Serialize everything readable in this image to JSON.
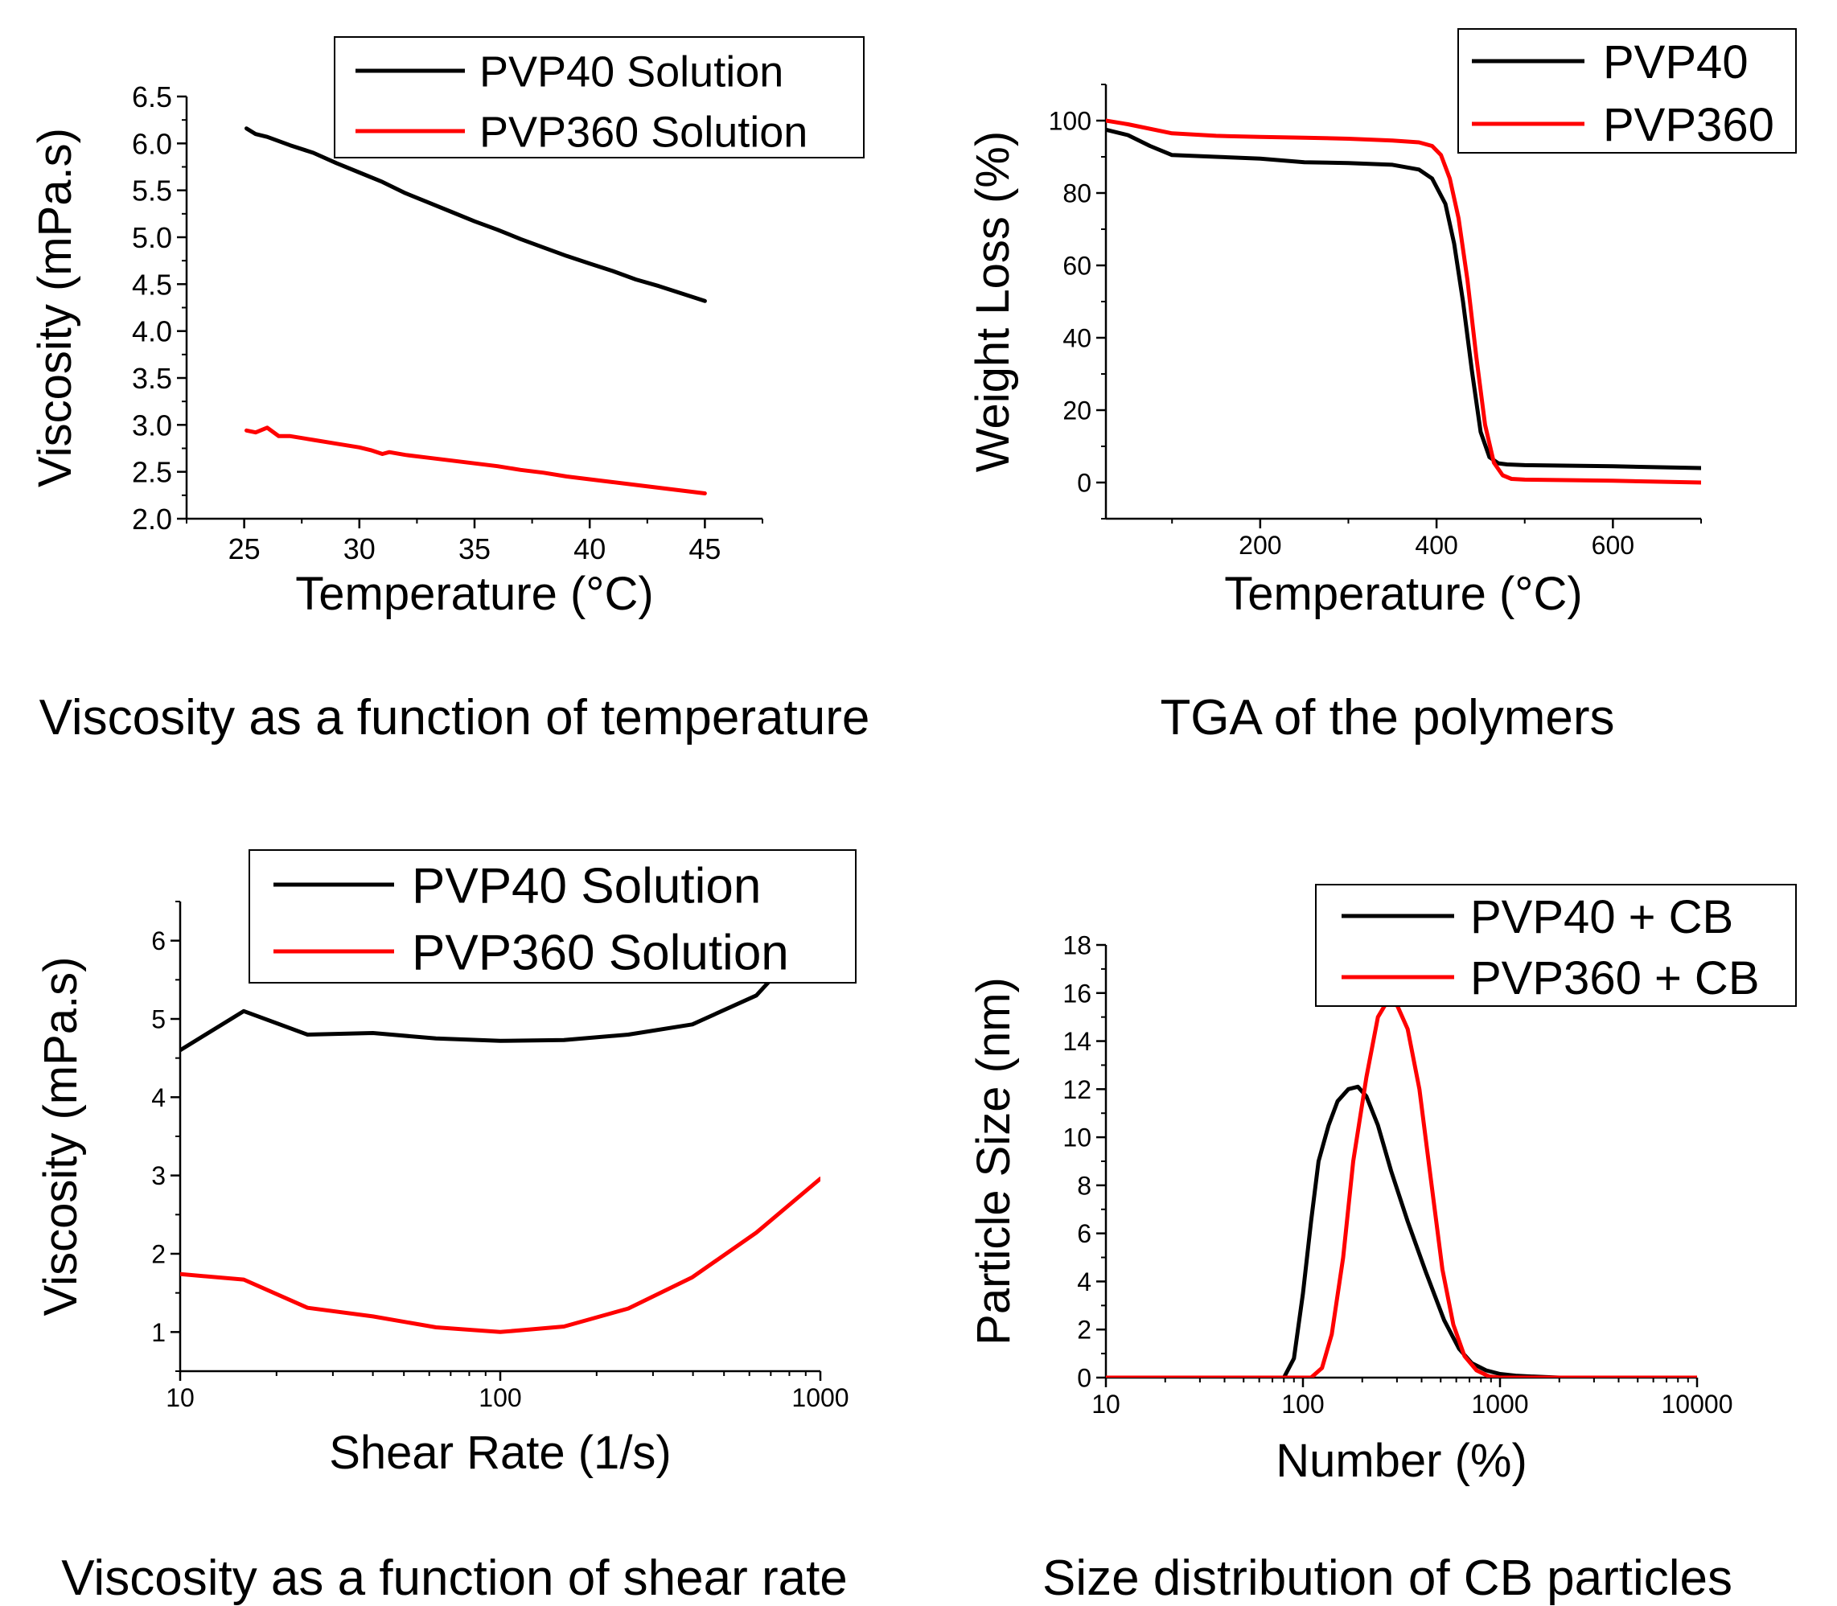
{
  "colors": {
    "series_black": "#000000",
    "series_red": "#ff0000"
  },
  "captions": [
    "Viscosity as a function of temperature",
    "TGA of the polymers",
    "Viscosity as a function of shear rate",
    "Size distribution of CB particles"
  ],
  "chart_data": [
    {
      "type": "line",
      "title": "",
      "xlabel": "Temperature (°C)",
      "ylabel": "Viscosity (mPa.s)",
      "xlim": [
        22.5,
        47.5
      ],
      "ylim": [
        2.0,
        6.5
      ],
      "x_ticks": [
        "25",
        "30",
        "35",
        "40",
        "45"
      ],
      "y_ticks": [
        "2.0",
        "2.5",
        "3.0",
        "3.5",
        "4.0",
        "4.5",
        "5.0",
        "5.5",
        "6.0",
        "6.5"
      ],
      "legend_position": "top-right",
      "series": [
        {
          "name": "PVP40 Solution",
          "color": "black",
          "x": [
            25.1,
            25.5,
            26,
            27,
            28,
            29,
            30,
            31,
            32,
            33,
            34,
            35,
            36,
            37,
            38,
            39,
            40,
            41,
            42,
            43,
            44,
            45
          ],
          "y": [
            6.16,
            6.1,
            6.07,
            5.98,
            5.9,
            5.79,
            5.69,
            5.59,
            5.47,
            5.37,
            5.27,
            5.17,
            5.08,
            4.98,
            4.89,
            4.8,
            4.72,
            4.64,
            4.55,
            4.48,
            4.4,
            4.32
          ]
        },
        {
          "name": "PVP360 Solution",
          "color": "red",
          "x": [
            25.1,
            25.5,
            26,
            26.5,
            27,
            28,
            29,
            30,
            30.5,
            31,
            31.3,
            32,
            33,
            34,
            35,
            36,
            37,
            38,
            39,
            40,
            41,
            42,
            43,
            44,
            45
          ],
          "y": [
            2.94,
            2.92,
            2.97,
            2.88,
            2.88,
            2.84,
            2.8,
            2.76,
            2.73,
            2.69,
            2.71,
            2.68,
            2.65,
            2.62,
            2.59,
            2.56,
            2.52,
            2.49,
            2.45,
            2.42,
            2.39,
            2.36,
            2.33,
            2.3,
            2.27
          ]
        }
      ]
    },
    {
      "type": "line",
      "title": "",
      "xlabel": "Temperature (°C)",
      "ylabel": "Weight Loss (%)",
      "xlim": [
        25,
        700
      ],
      "ylim": [
        -10,
        110
      ],
      "x_ticks": [
        "200",
        "400",
        "600"
      ],
      "y_ticks": [
        "0",
        "20",
        "40",
        "60",
        "80",
        "100"
      ],
      "legend_position": "top-right",
      "series": [
        {
          "name": "PVP40",
          "color": "black",
          "x": [
            25,
            50,
            75,
            100,
            150,
            200,
            250,
            300,
            350,
            380,
            395,
            410,
            420,
            430,
            440,
            450,
            460,
            470,
            480,
            500,
            600,
            700
          ],
          "y": [
            97.5,
            96,
            93,
            90.5,
            90,
            89.5,
            88.5,
            88.3,
            87.8,
            86.5,
            84,
            77,
            66,
            50,
            31,
            14,
            7,
            5.3,
            5,
            4.8,
            4.5,
            4
          ]
        },
        {
          "name": "PVP360",
          "color": "red",
          "x": [
            25,
            50,
            100,
            150,
            200,
            250,
            300,
            350,
            380,
            395,
            405,
            415,
            425,
            435,
            445,
            455,
            465,
            475,
            485,
            500,
            600,
            700
          ],
          "y": [
            100,
            99,
            96.5,
            95.8,
            95.5,
            95.3,
            95,
            94.5,
            94,
            93,
            90.5,
            84,
            73,
            56,
            35,
            16,
            5.5,
            2,
            1,
            0.8,
            0.5,
            0
          ]
        }
      ]
    },
    {
      "type": "line",
      "title": "",
      "xlabel": "Shear Rate (1/s)",
      "ylabel": "Viscosity (mPa.s)",
      "x_scale": "log",
      "xlim": [
        10,
        1000
      ],
      "ylim": [
        0.5,
        6.5
      ],
      "x_ticks": [
        "10",
        "100",
        "1000"
      ],
      "y_ticks": [
        "1",
        "2",
        "3",
        "4",
        "5",
        "6"
      ],
      "legend_position": "top-right",
      "series": [
        {
          "name": "PVP40 Solution",
          "color": "black",
          "x": [
            10,
            15.8,
            25,
            40,
            63,
            100,
            158,
            251,
            398,
            631,
            700
          ],
          "y": [
            4.6,
            5.1,
            4.8,
            4.82,
            4.75,
            4.72,
            4.73,
            4.8,
            4.93,
            5.3,
            5.5
          ]
        },
        {
          "name": "PVP360 Solution",
          "color": "red",
          "x": [
            10,
            15.8,
            25,
            40,
            63,
            100,
            158,
            251,
            398,
            631,
            1000
          ],
          "y": [
            1.74,
            1.67,
            1.31,
            1.2,
            1.06,
            1.0,
            1.07,
            1.3,
            1.7,
            2.27,
            2.96
          ]
        }
      ]
    },
    {
      "type": "line",
      "title": "",
      "xlabel": "Number (%)",
      "ylabel": "Particle Size (nm)",
      "x_scale": "log",
      "xlim": [
        10,
        10000
      ],
      "ylim": [
        0,
        18
      ],
      "x_ticks": [
        "10",
        "100",
        "1000",
        "10000"
      ],
      "y_ticks": [
        "0",
        "2",
        "4",
        "6",
        "8",
        "10",
        "12",
        "14",
        "16",
        "18"
      ],
      "legend_position": "top-right",
      "series": [
        {
          "name": "PVP40 + CB",
          "color": "black",
          "x": [
            10,
            80,
            90,
            100,
            110,
            120,
            135,
            150,
            170,
            190,
            210,
            240,
            280,
            340,
            420,
            520,
            620,
            720,
            850,
            1000,
            1200,
            1500,
            2000,
            10000
          ],
          "y": [
            0,
            0,
            0.8,
            3.5,
            6.5,
            9,
            10.5,
            11.5,
            12,
            12.1,
            11.7,
            10.5,
            8.6,
            6.5,
            4.4,
            2.4,
            1.2,
            0.6,
            0.3,
            0.15,
            0.08,
            0.04,
            0,
            0
          ]
        },
        {
          "name": "PVP360 + CB",
          "color": "red",
          "x": [
            10,
            110,
            125,
            140,
            160,
            180,
            210,
            240,
            270,
            300,
            340,
            390,
            450,
            510,
            580,
            660,
            760,
            880,
            1000,
            10000
          ],
          "y": [
            0,
            0,
            0.4,
            1.8,
            5,
            9,
            12.5,
            15,
            15.7,
            15.5,
            14.5,
            12,
            8,
            4.5,
            2.2,
            0.9,
            0.3,
            0.05,
            0,
            0
          ]
        }
      ]
    }
  ]
}
